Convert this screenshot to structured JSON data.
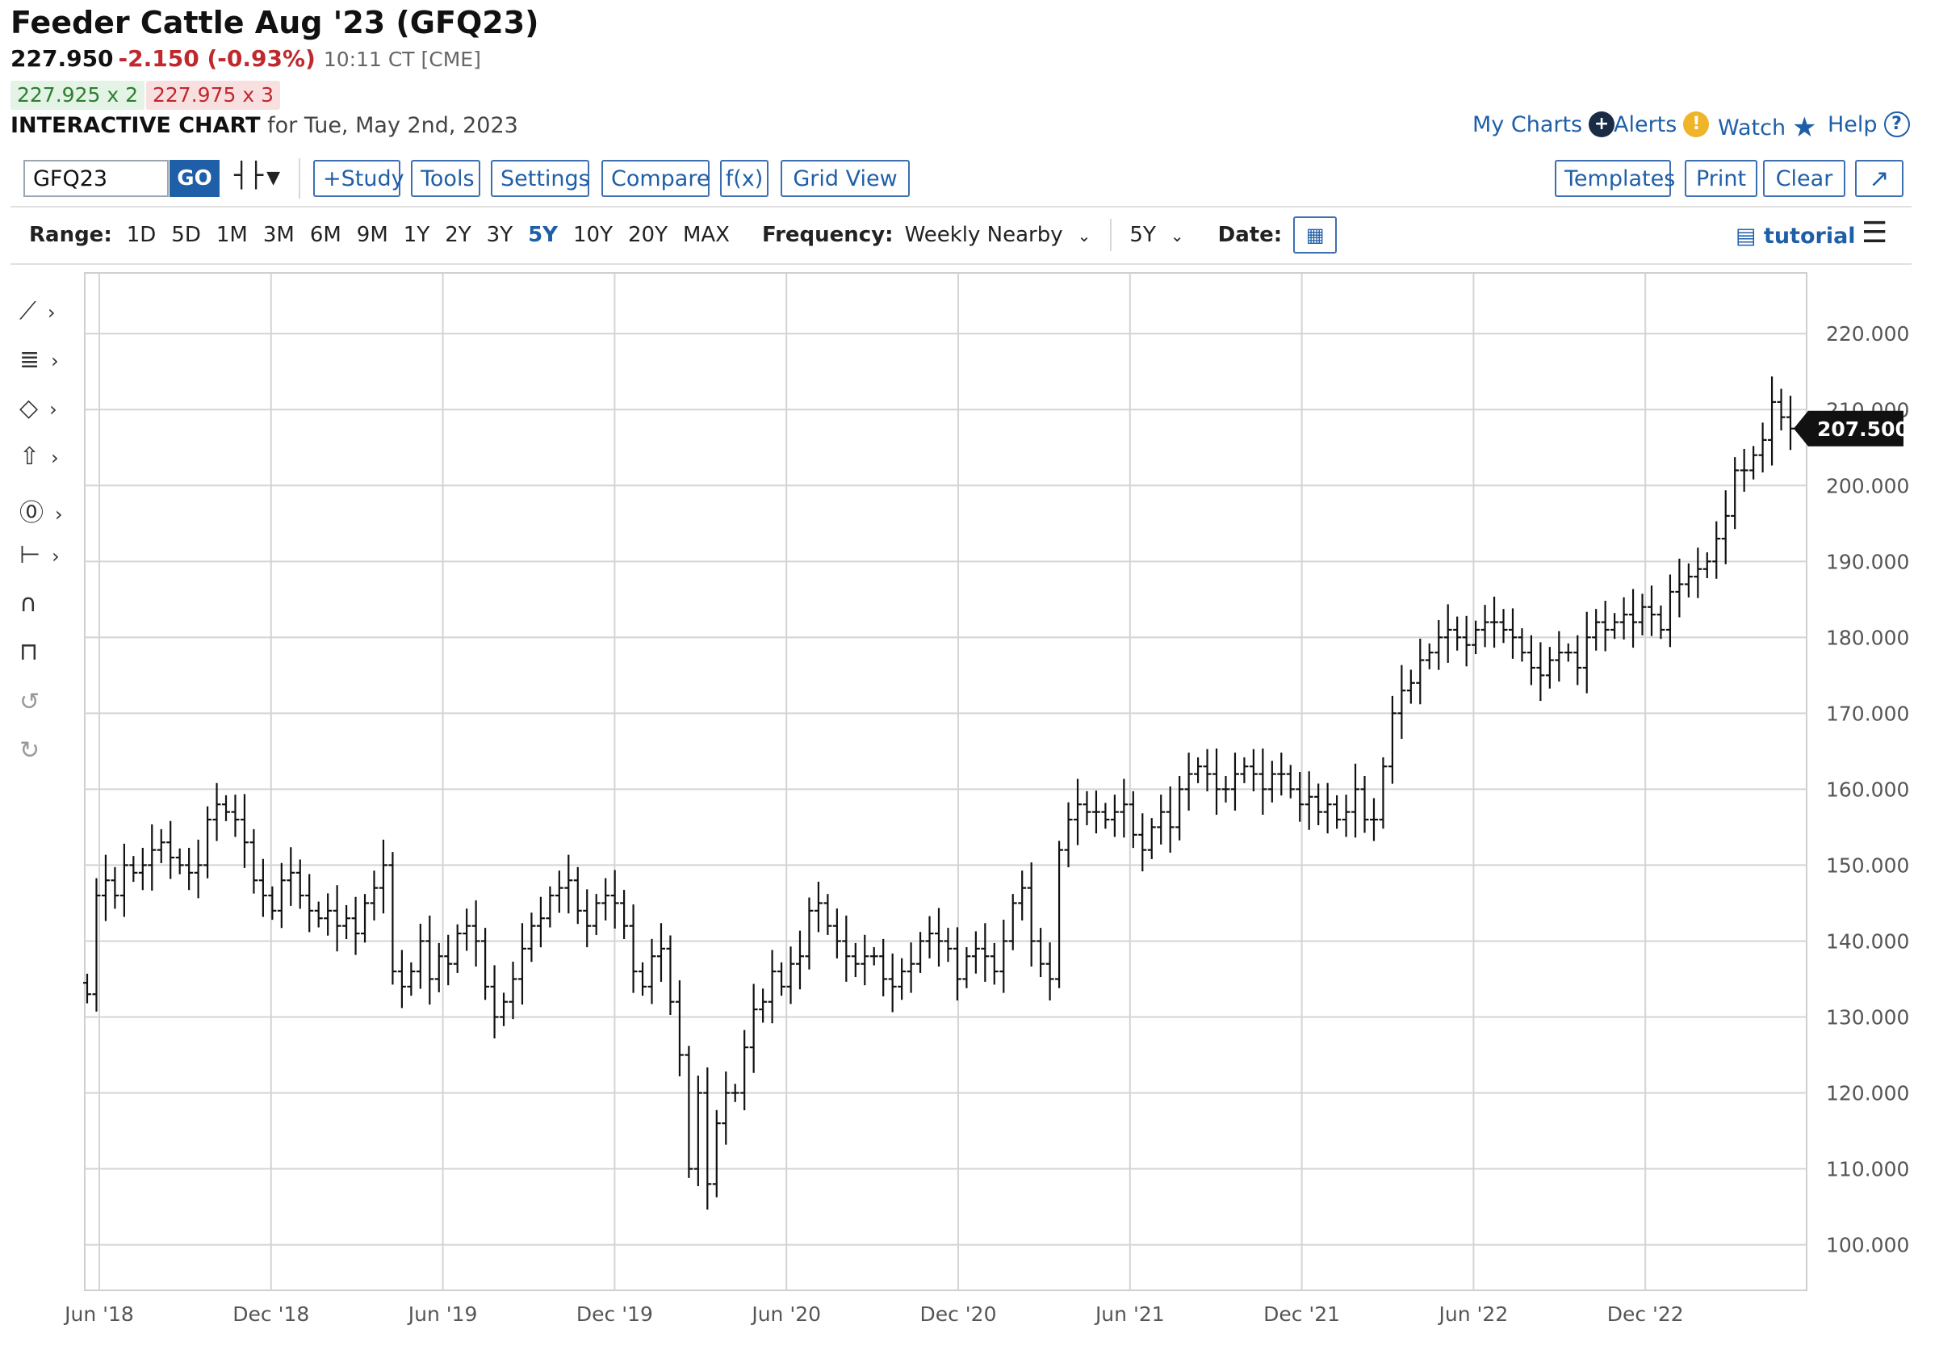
{
  "header": {
    "title": "Feeder Cattle Aug '23 (GFQ23)",
    "price": "227.950",
    "change": "-2.150 (-0.93%)",
    "time": "10:11 CT [CME]",
    "bid": "227.925 x 2",
    "ask": "227.975 x 3",
    "chart_label": "INTERACTIVE CHART",
    "chart_date": "for Tue, May 2nd, 2023"
  },
  "top_links": {
    "my_charts": "My Charts",
    "alerts": "Alerts",
    "watch": "Watch",
    "help": "Help"
  },
  "toolbar": {
    "symbol_value": "GFQ23",
    "go_label": "GO",
    "study_label": "+Study",
    "tools_label": "Tools",
    "settings_label": "Settings",
    "compare_label": "Compare",
    "fx_label": "f(x)",
    "grid_view_label": "Grid View",
    "templates_label": "Templates",
    "print_label": "Print",
    "clear_label": "Clear",
    "expand_icon": "expand-icon"
  },
  "rangebar": {
    "range_label": "Range:",
    "ranges": [
      "1D",
      "5D",
      "1M",
      "3M",
      "6M",
      "9M",
      "1Y",
      "2Y",
      "3Y",
      "5Y",
      "10Y",
      "20Y",
      "MAX"
    ],
    "active_range": "5Y",
    "frequency_label": "Frequency:",
    "frequency_value": "Weekly Nearby",
    "period_value": "5Y",
    "date_label": "Date:",
    "tutorial_label": "tutorial"
  },
  "colors": {
    "accent": "#1f5fa8",
    "down": "#c0282d",
    "up": "#2e7d32",
    "bar": "#111111"
  },
  "chart_data": {
    "type": "bar",
    "style": "ohlc",
    "y_ticks": [
      "100.000",
      "110.000",
      "120.000",
      "130.000",
      "140.000",
      "150.000",
      "160.000",
      "170.000",
      "180.000",
      "190.000",
      "200.000",
      "210.000",
      "220.000"
    ],
    "ylim": [
      94,
      228
    ],
    "x_ticks": [
      "Jun '18",
      "Dec '18",
      "Jun '19",
      "Dec '19",
      "Jun '20",
      "Dec '20",
      "Jun '21",
      "Dec '21",
      "Jun '22",
      "Dec '22"
    ],
    "last_value": "207.500",
    "grid": true,
    "series": [
      {
        "values": [
          133,
          146,
          148,
          146,
          150,
          149,
          150,
          152,
          153,
          151,
          150,
          149,
          150,
          156,
          158,
          157,
          156,
          153,
          148,
          146,
          144,
          148,
          149,
          146,
          144,
          143,
          144,
          142,
          143,
          141,
          145,
          147,
          150,
          136,
          134,
          136,
          140,
          135,
          138,
          137,
          141,
          142,
          140,
          134,
          130,
          132,
          135,
          139,
          142,
          143,
          146,
          147,
          148,
          144,
          142,
          145,
          146,
          145,
          142,
          136,
          134,
          138,
          139,
          132,
          125,
          110,
          120,
          108,
          116,
          120,
          120,
          126,
          131,
          132,
          136,
          134,
          137,
          138,
          144,
          145,
          142,
          140,
          138,
          137,
          138,
          138,
          135,
          134,
          136,
          137,
          140,
          141,
          140,
          139,
          135,
          138,
          139,
          138,
          136,
          140,
          145,
          147,
          140,
          137,
          135,
          152,
          156,
          158,
          157,
          157,
          156,
          157,
          158,
          154,
          152,
          155,
          157,
          155,
          160,
          162,
          163,
          162,
          160,
          160,
          162,
          163,
          162,
          160,
          162,
          162,
          160,
          158,
          159,
          157,
          158,
          156,
          157,
          160,
          156,
          156,
          163,
          170,
          173,
          174,
          177,
          178,
          180,
          181,
          180,
          179,
          181,
          182,
          182,
          181,
          180,
          178,
          176,
          175,
          177,
          178,
          178,
          176,
          180,
          182,
          181,
          182,
          183,
          182,
          184,
          183,
          181,
          186,
          187,
          188,
          189,
          190,
          193,
          196,
          202,
          202,
          204,
          206,
          211,
          209,
          207.5
        ]
      }
    ]
  }
}
